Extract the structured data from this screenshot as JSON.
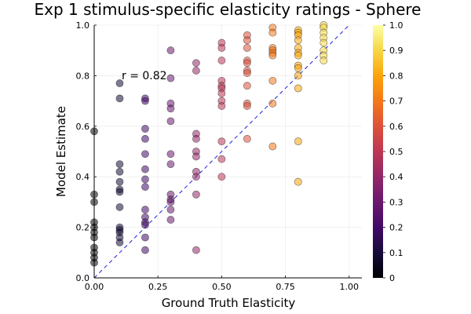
{
  "chart_data": {
    "type": "scatter",
    "title": "Exp 1 stimulus-specific elasticity ratings - Sphere",
    "xlabel": "Ground Truth Elasticity",
    "ylabel": "Model Estimate",
    "xlim": [
      0.0,
      1.05
    ],
    "ylim": [
      0.0,
      1.0
    ],
    "x_ticks": [
      "0.00",
      "0.25",
      "0.50",
      "0.75",
      "1.00"
    ],
    "y_ticks": [
      "0.0",
      "0.2",
      "0.4",
      "0.6",
      "0.8",
      "1.0"
    ],
    "grid": true,
    "annotation": "r = 0.82",
    "reference_line": "y = x (dashed, blue)",
    "colorbar": {
      "colormap": "inferno",
      "range": [
        0.0,
        1.0
      ],
      "ticks": [
        "0",
        "0.1",
        "0.2",
        "0.3",
        "0.4",
        "0.5",
        "0.6",
        "0.7",
        "0.8",
        "0.9",
        "1.0"
      ]
    },
    "points": [
      {
        "x": 0.0,
        "y": 0.58
      },
      {
        "x": 0.0,
        "y": 0.33
      },
      {
        "x": 0.0,
        "y": 0.3
      },
      {
        "x": 0.0,
        "y": 0.22
      },
      {
        "x": 0.0,
        "y": 0.2
      },
      {
        "x": 0.0,
        "y": 0.18
      },
      {
        "x": 0.0,
        "y": 0.16
      },
      {
        "x": 0.0,
        "y": 0.12
      },
      {
        "x": 0.0,
        "y": 0.1
      },
      {
        "x": 0.0,
        "y": 0.08
      },
      {
        "x": 0.0,
        "y": 0.06
      },
      {
        "x": 0.1,
        "y": 0.77
      },
      {
        "x": 0.1,
        "y": 0.71
      },
      {
        "x": 0.1,
        "y": 0.45
      },
      {
        "x": 0.1,
        "y": 0.42
      },
      {
        "x": 0.1,
        "y": 0.38
      },
      {
        "x": 0.1,
        "y": 0.35
      },
      {
        "x": 0.1,
        "y": 0.34
      },
      {
        "x": 0.1,
        "y": 0.28
      },
      {
        "x": 0.1,
        "y": 0.2
      },
      {
        "x": 0.1,
        "y": 0.19
      },
      {
        "x": 0.1,
        "y": 0.18
      },
      {
        "x": 0.1,
        "y": 0.16
      },
      {
        "x": 0.1,
        "y": 0.14
      },
      {
        "x": 0.2,
        "y": 0.71
      },
      {
        "x": 0.2,
        "y": 0.7
      },
      {
        "x": 0.2,
        "y": 0.59
      },
      {
        "x": 0.2,
        "y": 0.55
      },
      {
        "x": 0.2,
        "y": 0.49
      },
      {
        "x": 0.2,
        "y": 0.43
      },
      {
        "x": 0.2,
        "y": 0.39
      },
      {
        "x": 0.2,
        "y": 0.36
      },
      {
        "x": 0.2,
        "y": 0.27
      },
      {
        "x": 0.2,
        "y": 0.24
      },
      {
        "x": 0.2,
        "y": 0.22
      },
      {
        "x": 0.2,
        "y": 0.21
      },
      {
        "x": 0.2,
        "y": 0.16
      },
      {
        "x": 0.2,
        "y": 0.11
      },
      {
        "x": 0.3,
        "y": 0.9
      },
      {
        "x": 0.3,
        "y": 0.79
      },
      {
        "x": 0.3,
        "y": 0.69
      },
      {
        "x": 0.3,
        "y": 0.67
      },
      {
        "x": 0.3,
        "y": 0.62
      },
      {
        "x": 0.3,
        "y": 0.49
      },
      {
        "x": 0.3,
        "y": 0.45
      },
      {
        "x": 0.3,
        "y": 0.33
      },
      {
        "x": 0.3,
        "y": 0.31
      },
      {
        "x": 0.3,
        "y": 0.3
      },
      {
        "x": 0.3,
        "y": 0.27
      },
      {
        "x": 0.3,
        "y": 0.23
      },
      {
        "x": 0.4,
        "y": 0.85
      },
      {
        "x": 0.4,
        "y": 0.82
      },
      {
        "x": 0.4,
        "y": 0.57
      },
      {
        "x": 0.4,
        "y": 0.55
      },
      {
        "x": 0.4,
        "y": 0.5
      },
      {
        "x": 0.4,
        "y": 0.48
      },
      {
        "x": 0.4,
        "y": 0.42
      },
      {
        "x": 0.4,
        "y": 0.4
      },
      {
        "x": 0.4,
        "y": 0.33
      },
      {
        "x": 0.4,
        "y": 0.11
      },
      {
        "x": 0.5,
        "y": 0.93
      },
      {
        "x": 0.5,
        "y": 0.91
      },
      {
        "x": 0.5,
        "y": 0.86
      },
      {
        "x": 0.5,
        "y": 0.78
      },
      {
        "x": 0.5,
        "y": 0.76
      },
      {
        "x": 0.5,
        "y": 0.75
      },
      {
        "x": 0.5,
        "y": 0.73
      },
      {
        "x": 0.5,
        "y": 0.7
      },
      {
        "x": 0.5,
        "y": 0.68
      },
      {
        "x": 0.5,
        "y": 0.54
      },
      {
        "x": 0.5,
        "y": 0.47
      },
      {
        "x": 0.5,
        "y": 0.4
      },
      {
        "x": 0.6,
        "y": 0.96
      },
      {
        "x": 0.6,
        "y": 0.94
      },
      {
        "x": 0.6,
        "y": 0.91
      },
      {
        "x": 0.6,
        "y": 0.86
      },
      {
        "x": 0.6,
        "y": 0.85
      },
      {
        "x": 0.6,
        "y": 0.82
      },
      {
        "x": 0.6,
        "y": 0.81
      },
      {
        "x": 0.6,
        "y": 0.76
      },
      {
        "x": 0.6,
        "y": 0.69
      },
      {
        "x": 0.6,
        "y": 0.68
      },
      {
        "x": 0.6,
        "y": 0.55
      },
      {
        "x": 0.7,
        "y": 0.99
      },
      {
        "x": 0.7,
        "y": 0.97
      },
      {
        "x": 0.7,
        "y": 0.91
      },
      {
        "x": 0.7,
        "y": 0.9
      },
      {
        "x": 0.7,
        "y": 0.89
      },
      {
        "x": 0.7,
        "y": 0.88
      },
      {
        "x": 0.7,
        "y": 0.78
      },
      {
        "x": 0.7,
        "y": 0.69
      },
      {
        "x": 0.7,
        "y": 0.52
      },
      {
        "x": 0.8,
        "y": 0.98
      },
      {
        "x": 0.8,
        "y": 0.97
      },
      {
        "x": 0.8,
        "y": 0.96
      },
      {
        "x": 0.8,
        "y": 0.94
      },
      {
        "x": 0.8,
        "y": 0.91
      },
      {
        "x": 0.8,
        "y": 0.89
      },
      {
        "x": 0.8,
        "y": 0.88
      },
      {
        "x": 0.8,
        "y": 0.84
      },
      {
        "x": 0.8,
        "y": 0.83
      },
      {
        "x": 0.8,
        "y": 0.8
      },
      {
        "x": 0.8,
        "y": 0.75
      },
      {
        "x": 0.8,
        "y": 0.54
      },
      {
        "x": 0.8,
        "y": 0.38
      },
      {
        "x": 0.9,
        "y": 1.0
      },
      {
        "x": 0.9,
        "y": 0.99
      },
      {
        "x": 0.9,
        "y": 0.97
      },
      {
        "x": 0.9,
        "y": 0.95
      },
      {
        "x": 0.9,
        "y": 0.93
      },
      {
        "x": 0.9,
        "y": 0.9
      },
      {
        "x": 0.9,
        "y": 0.88
      },
      {
        "x": 0.9,
        "y": 0.86
      }
    ]
  }
}
